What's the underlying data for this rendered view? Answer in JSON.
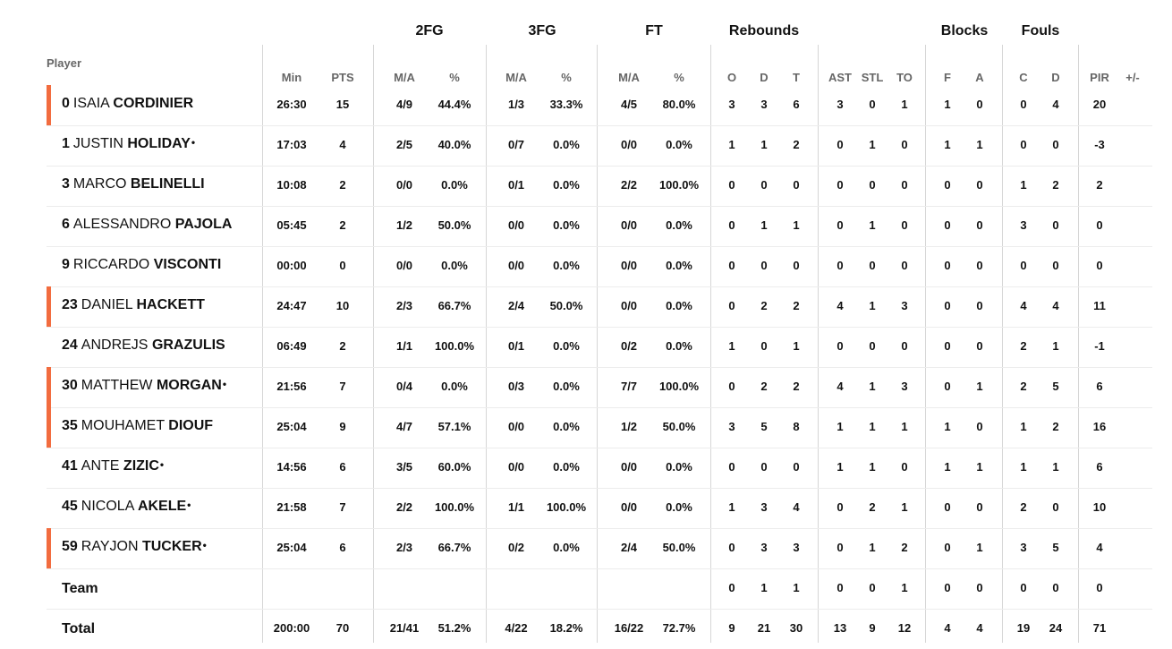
{
  "groups": [
    "2FG",
    "3FG",
    "FT",
    "Rebounds",
    "Blocks",
    "Fouls"
  ],
  "player_header": "Player",
  "columns": [
    "Min",
    "PTS",
    "M/A",
    "%",
    "M/A",
    "%",
    "M/A",
    "%",
    "O",
    "D",
    "T",
    "AST",
    "STL",
    "TO",
    "F",
    "A",
    "C",
    "D",
    "PIR",
    "+/-"
  ],
  "accent_color": "#f26c3f",
  "players": [
    {
      "num": "0",
      "first": "ISAIA",
      "last": "CORDINIER",
      "dot": "",
      "starter": true,
      "stats": [
        "26:30",
        "15",
        "4/9",
        "44.4%",
        "1/3",
        "33.3%",
        "4/5",
        "80.0%",
        "3",
        "3",
        "6",
        "3",
        "0",
        "1",
        "1",
        "0",
        "0",
        "4",
        "20",
        ""
      ]
    },
    {
      "num": "1",
      "first": "JUSTIN",
      "last": "HOLIDAY",
      "dot": "•",
      "starter": false,
      "stats": [
        "17:03",
        "4",
        "2/5",
        "40.0%",
        "0/7",
        "0.0%",
        "0/0",
        "0.0%",
        "1",
        "1",
        "2",
        "0",
        "1",
        "0",
        "1",
        "1",
        "0",
        "0",
        "-3",
        ""
      ]
    },
    {
      "num": "3",
      "first": "MARCO",
      "last": "BELINELLI",
      "dot": "",
      "starter": false,
      "stats": [
        "10:08",
        "2",
        "0/0",
        "0.0%",
        "0/1",
        "0.0%",
        "2/2",
        "100.0%",
        "0",
        "0",
        "0",
        "0",
        "0",
        "0",
        "0",
        "0",
        "1",
        "2",
        "2",
        ""
      ]
    },
    {
      "num": "6",
      "first": "ALESSANDRO",
      "last": "PAJOLA",
      "dot": "",
      "starter": false,
      "stats": [
        "05:45",
        "2",
        "1/2",
        "50.0%",
        "0/0",
        "0.0%",
        "0/0",
        "0.0%",
        "0",
        "1",
        "1",
        "0",
        "1",
        "0",
        "0",
        "0",
        "3",
        "0",
        "0",
        ""
      ]
    },
    {
      "num": "9",
      "first": "RICCARDO",
      "last": "VISCONTI",
      "dot": "",
      "starter": false,
      "stats": [
        "00:00",
        "0",
        "0/0",
        "0.0%",
        "0/0",
        "0.0%",
        "0/0",
        "0.0%",
        "0",
        "0",
        "0",
        "0",
        "0",
        "0",
        "0",
        "0",
        "0",
        "0",
        "0",
        ""
      ]
    },
    {
      "num": "23",
      "first": "DANIEL",
      "last": "HACKETT",
      "dot": "",
      "starter": true,
      "stats": [
        "24:47",
        "10",
        "2/3",
        "66.7%",
        "2/4",
        "50.0%",
        "0/0",
        "0.0%",
        "0",
        "2",
        "2",
        "4",
        "1",
        "3",
        "0",
        "0",
        "4",
        "4",
        "11",
        ""
      ]
    },
    {
      "num": "24",
      "first": "ANDREJS",
      "last": "GRAZULIS",
      "dot": "",
      "starter": false,
      "stats": [
        "06:49",
        "2",
        "1/1",
        "100.0%",
        "0/1",
        "0.0%",
        "0/2",
        "0.0%",
        "1",
        "0",
        "1",
        "0",
        "0",
        "0",
        "0",
        "0",
        "2",
        "1",
        "-1",
        ""
      ]
    },
    {
      "num": "30",
      "first": "MATTHEW",
      "last": "MORGAN",
      "dot": "•",
      "starter": true,
      "stats": [
        "21:56",
        "7",
        "0/4",
        "0.0%",
        "0/3",
        "0.0%",
        "7/7",
        "100.0%",
        "0",
        "2",
        "2",
        "4",
        "1",
        "3",
        "0",
        "1",
        "2",
        "5",
        "6",
        ""
      ]
    },
    {
      "num": "35",
      "first": "MOUHAMET",
      "last": "DIOUF",
      "dot": "",
      "starter": true,
      "stats": [
        "25:04",
        "9",
        "4/7",
        "57.1%",
        "0/0",
        "0.0%",
        "1/2",
        "50.0%",
        "3",
        "5",
        "8",
        "1",
        "1",
        "1",
        "1",
        "0",
        "1",
        "2",
        "16",
        ""
      ]
    },
    {
      "num": "41",
      "first": "ANTE",
      "last": "ZIZIC",
      "dot": "•",
      "starter": false,
      "stats": [
        "14:56",
        "6",
        "3/5",
        "60.0%",
        "0/0",
        "0.0%",
        "0/0",
        "0.0%",
        "0",
        "0",
        "0",
        "1",
        "1",
        "0",
        "1",
        "1",
        "1",
        "1",
        "6",
        ""
      ]
    },
    {
      "num": "45",
      "first": "NICOLA",
      "last": "AKELE",
      "dot": "•",
      "starter": false,
      "stats": [
        "21:58",
        "7",
        "2/2",
        "100.0%",
        "1/1",
        "100.0%",
        "0/0",
        "0.0%",
        "1",
        "3",
        "4",
        "0",
        "2",
        "1",
        "0",
        "0",
        "2",
        "0",
        "10",
        ""
      ]
    },
    {
      "num": "59",
      "first": "RAYJON",
      "last": "TUCKER",
      "dot": "•",
      "starter": true,
      "stats": [
        "25:04",
        "6",
        "2/3",
        "66.7%",
        "0/2",
        "0.0%",
        "2/4",
        "50.0%",
        "0",
        "3",
        "3",
        "0",
        "1",
        "2",
        "0",
        "1",
        "3",
        "5",
        "4",
        ""
      ]
    }
  ],
  "team": {
    "label": "Team",
    "stats": [
      "",
      "",
      "",
      "",
      "",
      "",
      "",
      "",
      "0",
      "1",
      "1",
      "0",
      "0",
      "1",
      "0",
      "0",
      "0",
      "0",
      "0",
      ""
    ]
  },
  "total": {
    "label": "Total",
    "stats": [
      "200:00",
      "70",
      "21/41",
      "51.2%",
      "4/22",
      "18.2%",
      "16/22",
      "72.7%",
      "9",
      "21",
      "30",
      "13",
      "9",
      "12",
      "4",
      "4",
      "19",
      "24",
      "71",
      ""
    ]
  }
}
